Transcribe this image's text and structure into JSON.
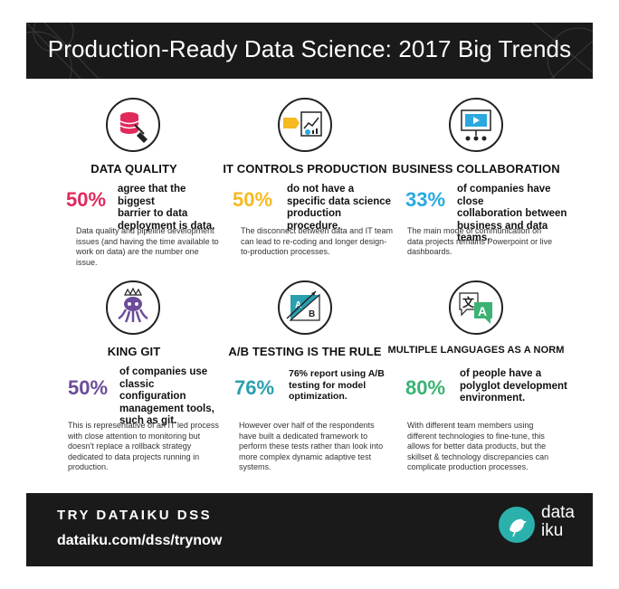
{
  "title": "Production-Ready Data Science: 2017 Big Trends",
  "colors": {
    "red": "#e2295b",
    "yellow": "#f5b921",
    "blue": "#29a9e0",
    "purple": "#6b4c9a",
    "teal": "#2a9fb0",
    "green": "#3bb273",
    "dark": "#1a1a1a"
  },
  "cards": [
    {
      "icon": "database-broom-icon",
      "heading": "DATA QUALITY",
      "percent": "50%",
      "stat_lines": [
        "agree that the biggest",
        "barrier to data",
        "deployment is data."
      ],
      "desc_lines": [
        "Data quality and pipeline development",
        "issues (and having the time available to",
        "work on data) are the number one issue."
      ]
    },
    {
      "icon": "pipeline-chart-icon",
      "heading": "IT CONTROLS PRODUCTION",
      "percent": "50%",
      "stat_lines": [
        "do not have a",
        "specific data science",
        "production procedure."
      ],
      "desc_lines": [
        "The disconnect between data and IT team",
        "can lead to re-coding and longer design-",
        "to-production processes."
      ]
    },
    {
      "icon": "presentation-board-icon",
      "heading": "BUSINESS COLLABORATION",
      "percent": "33%",
      "stat_lines": [
        "of companies have close",
        "collaboration between",
        "business and data teams."
      ],
      "desc_lines": [
        "The main mode of communication on",
        "data projects remains Powerpoint or live",
        "dashboards."
      ]
    },
    {
      "icon": "octocat-crown-icon",
      "heading": "KING GIT",
      "percent": "50%",
      "stat_lines": [
        "of companies use",
        "classic configuration",
        "management tools,",
        "such as git."
      ],
      "desc_lines": [
        "This is representative of an IT led process",
        "with close attention to monitoring but",
        "doesn't replace a rollback strategy",
        "dedicated to data projects running in",
        "production."
      ]
    },
    {
      "icon": "ab-test-icon",
      "heading": "A/B TESTING IS THE RULE",
      "percent": "76%",
      "stat_lines": [
        "76% report using A/B",
        "testing for model",
        "optimization."
      ],
      "desc_lines": [
        "However over half of the respondents",
        "have built a dedicated framework to",
        "perform these tests rather than look into",
        "more complex dynamic adaptive test",
        "systems."
      ]
    },
    {
      "icon": "translate-icon",
      "heading": "MULTIPLE LANGUAGES AS A NORM",
      "percent": "80%",
      "stat_lines": [
        "of people have a",
        "polyglot development",
        "environment."
      ],
      "desc_lines": [
        "With different team members using",
        "different technologies to fine-tune, this",
        "allows for better data products, but the",
        "skillset & technology discrepancies can",
        "complicate production processes."
      ]
    }
  ],
  "footer": {
    "cta": "TRY DATAIKU DSS",
    "url": "dataiku.com/dss/trynow",
    "logo_line1": "data",
    "logo_line2": "iku"
  }
}
